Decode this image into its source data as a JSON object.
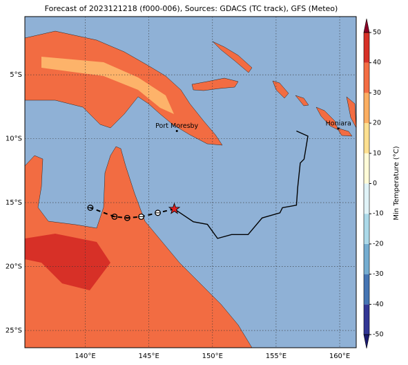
{
  "title": "Forecast of 2023121218 (f000-006), Sources: GDACS (TC track), GFS (Meteo)",
  "map": {
    "xlim": [
      135.25,
      161.3
    ],
    "ylim": [
      -26.35,
      -0.45
    ],
    "xticks": [
      {
        "value": 140,
        "label": "140°E"
      },
      {
        "value": 145,
        "label": "145°E"
      },
      {
        "value": 150,
        "label": "150°E"
      },
      {
        "value": 155,
        "label": "155°E"
      },
      {
        "value": 160,
        "label": "160°E"
      }
    ],
    "yticks": [
      {
        "value": -5,
        "label": "5°S"
      },
      {
        "value": -10,
        "label": "10°S"
      },
      {
        "value": -15,
        "label": "15°S"
      },
      {
        "value": -20,
        "label": "20°S"
      },
      {
        "value": -25,
        "label": "25°S"
      }
    ],
    "places": [
      {
        "name": "Port Moresby",
        "lon": 147.2,
        "lat": -9.4
      },
      {
        "name": "Honiara",
        "lon": 159.9,
        "lat": -9.2
      }
    ],
    "track": {
      "lon": [
        156.6,
        157.5,
        157.2,
        156.9,
        156.7,
        156.6,
        155.5,
        155.3,
        153.9,
        152.8,
        151.5,
        150.4,
        149.6,
        148.5,
        147.0
      ],
      "lat": [
        -9.4,
        -9.8,
        -11.6,
        -11.9,
        -13.8,
        -15.2,
        -15.4,
        -15.8,
        -16.2,
        -17.5,
        -17.5,
        -17.8,
        -16.7,
        -16.5,
        -15.5
      ]
    },
    "current": {
      "lon": 147.0,
      "lat": -15.5
    },
    "forecast": {
      "lon": [
        147.0,
        145.7,
        144.4,
        143.3,
        142.3,
        140.4
      ],
      "lat": [
        -15.5,
        -15.8,
        -16.1,
        -16.2,
        -16.1,
        -15.4
      ]
    }
  },
  "colorbar": {
    "label": "Min Temperature (°C)",
    "lim": [
      -50,
      50
    ],
    "ticks": [
      -50,
      -40,
      -30,
      -20,
      -10,
      0,
      10,
      20,
      30,
      40,
      50
    ],
    "colors": [
      "#313695",
      "#4575b4",
      "#74add1",
      "#abd9e9",
      "#e0f3f8",
      "#fffbd8",
      "#fee090",
      "#fdae61",
      "#f46d43",
      "#d73027"
    ],
    "under": "#1a1a6e",
    "over": "#8b0026"
  }
}
